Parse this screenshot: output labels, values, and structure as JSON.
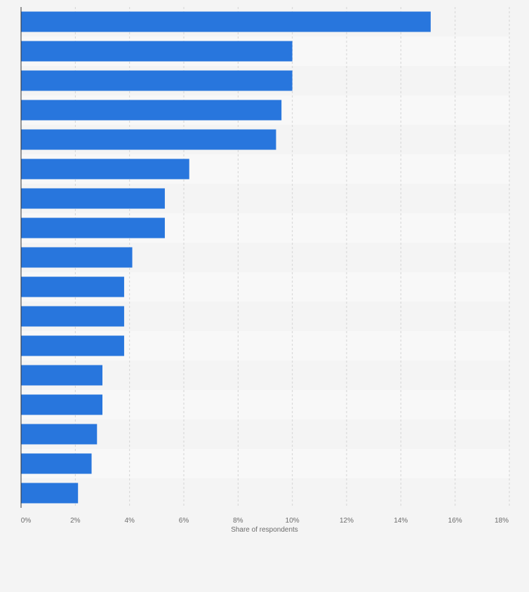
{
  "chart_data": {
    "type": "bar",
    "orientation": "horizontal",
    "categories": [
      "",
      "",
      "",
      "",
      "",
      "",
      "",
      "",
      "",
      "",
      "",
      "",
      "",
      "",
      "",
      "",
      ""
    ],
    "values": [
      15.1,
      10.0,
      10.0,
      9.6,
      9.4,
      6.2,
      5.3,
      5.3,
      4.1,
      3.8,
      3.8,
      3.8,
      3.0,
      3.0,
      2.8,
      2.6,
      2.1
    ],
    "unit": "%",
    "xlabel": "Share of respondents",
    "ylabel": "",
    "xlim": [
      0,
      18
    ],
    "x_ticks": [
      0,
      2,
      4,
      6,
      8,
      10,
      12,
      14,
      16,
      18
    ],
    "x_tick_labels": [
      "0%",
      "2%",
      "4%",
      "6%",
      "8%",
      "10%",
      "12%",
      "14%",
      "16%",
      "18%"
    ],
    "grid": true,
    "bar_color": "#2876dd",
    "grid_color": "#d4d4d4",
    "band_colors": [
      "#f4f4f4",
      "#f8f8f8"
    ],
    "background_color": "#f4f4f4"
  }
}
